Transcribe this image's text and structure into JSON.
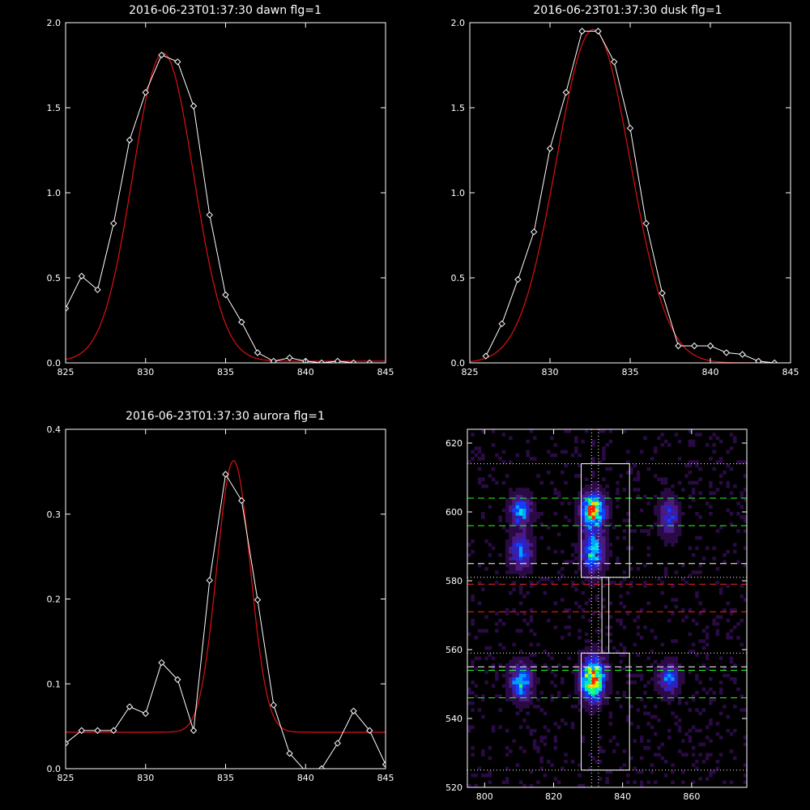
{
  "chart_data": [
    {
      "id": "dawn",
      "type": "line",
      "title": "2016-06-23T01:37:30 dawn flg=1",
      "xlabel": "",
      "ylabel": "",
      "xlim": [
        825,
        845
      ],
      "ylim": [
        0,
        2.0
      ],
      "xticks": [
        "825",
        "830",
        "835",
        "840",
        "845"
      ],
      "yticks": [
        "0.0",
        "0.5",
        "1.0",
        "1.5",
        "2.0"
      ],
      "series": [
        {
          "kind": "data",
          "color": "#ffffff",
          "marker": "diamond",
          "x": [
            825,
            826,
            827,
            828,
            829,
            830,
            831,
            832,
            833,
            834,
            835,
            836,
            837,
            838,
            839,
            840,
            841,
            842,
            843,
            844
          ],
          "y": [
            0.32,
            0.51,
            0.43,
            0.82,
            1.31,
            1.59,
            1.81,
            1.77,
            1.51,
            0.87,
            0.4,
            0.24,
            0.06,
            0.01,
            0.03,
            0.01,
            0.0,
            0.01,
            0.0,
            0.0
          ]
        },
        {
          "kind": "fit",
          "color": "#e01010",
          "gaussian": {
            "amp": 1.81,
            "center": 831.1,
            "sigma": 1.9,
            "offset": 0.01
          }
        }
      ]
    },
    {
      "id": "dusk",
      "type": "line",
      "title": "2016-06-23T01:37:30 dusk flg=1",
      "xlabel": "",
      "ylabel": "",
      "xlim": [
        825,
        845
      ],
      "ylim": [
        0,
        2.0
      ],
      "xticks": [
        "825",
        "830",
        "835",
        "840",
        "845"
      ],
      "yticks": [
        "0.0",
        "0.5",
        "1.0",
        "1.5",
        "2.0"
      ],
      "series": [
        {
          "kind": "data",
          "color": "#ffffff",
          "marker": "diamond",
          "x": [
            826,
            827,
            828,
            829,
            830,
            831,
            832,
            833,
            834,
            835,
            836,
            837,
            838,
            839,
            840,
            841,
            842,
            843,
            844
          ],
          "y": [
            0.04,
            0.23,
            0.49,
            0.77,
            1.26,
            1.59,
            1.95,
            1.95,
            1.77,
            1.38,
            0.82,
            0.41,
            0.1,
            0.1,
            0.1,
            0.06,
            0.05,
            0.01,
            0.0
          ]
        },
        {
          "kind": "fit",
          "color": "#e01010",
          "gaussian": {
            "amp": 1.96,
            "center": 832.7,
            "sigma": 2.3,
            "offset": 0.0
          }
        }
      ]
    },
    {
      "id": "aurora",
      "type": "line",
      "title": "2016-06-23T01:37:30 aurora flg=1",
      "xlabel": "",
      "ylabel": "",
      "xlim": [
        825,
        845
      ],
      "ylim": [
        0,
        0.4
      ],
      "xticks": [
        "825",
        "830",
        "835",
        "840",
        "845"
      ],
      "yticks": [
        "0.0",
        "0.1",
        "0.2",
        "0.3",
        "0.4"
      ],
      "series": [
        {
          "kind": "data",
          "color": "#ffffff",
          "marker": "diamond",
          "x": [
            825,
            826,
            827,
            828,
            829,
            830,
            831,
            832,
            833,
            834,
            835,
            836,
            837,
            838,
            839,
            840,
            841,
            842,
            843,
            844,
            845
          ],
          "y": [
            0.03,
            0.045,
            0.045,
            0.045,
            0.073,
            0.065,
            0.125,
            0.105,
            0.045,
            0.222,
            0.347,
            0.316,
            0.199,
            0.075,
            0.018,
            -0.003,
            0.0,
            0.03,
            0.068,
            0.045,
            0.005
          ]
        },
        {
          "kind": "fit",
          "color": "#e01010",
          "gaussian": {
            "amp": 0.32,
            "center": 835.5,
            "sigma": 1.05,
            "offset": 0.043
          }
        }
      ]
    },
    {
      "id": "image",
      "type": "heatmap",
      "title": "",
      "xlabel": "",
      "ylabel": "",
      "xlim": [
        795,
        876
      ],
      "ylim": [
        520,
        624
      ],
      "xticks": [
        "800",
        "820",
        "840",
        "860"
      ],
      "yticks": [
        "520",
        "540",
        "560",
        "580",
        "600",
        "620"
      ],
      "colormap": [
        "#000000",
        "#2a0a45",
        "#4a1a80",
        "#3020c0",
        "#1040ff",
        "#00a0ff",
        "#00e0e0",
        "#20ff60",
        "#c0ff00",
        "#ffd000",
        "#ff2000"
      ],
      "blobs": [
        {
          "x": 810,
          "y": 600,
          "sx": 2.0,
          "sy": 3.0,
          "amp": 0.55
        },
        {
          "x": 810,
          "y": 588,
          "sx": 2.2,
          "sy": 3.5,
          "amp": 0.45
        },
        {
          "x": 831,
          "y": 600,
          "sx": 2.2,
          "sy": 3.2,
          "amp": 1.0
        },
        {
          "x": 831,
          "y": 588,
          "sx": 2.2,
          "sy": 4.0,
          "amp": 0.6
        },
        {
          "x": 853,
          "y": 598,
          "sx": 2.0,
          "sy": 4.0,
          "amp": 0.35
        },
        {
          "x": 810,
          "y": 550,
          "sx": 2.2,
          "sy": 3.5,
          "amp": 0.6
        },
        {
          "x": 831,
          "y": 551,
          "sx": 2.3,
          "sy": 4.0,
          "amp": 1.0
        },
        {
          "x": 853,
          "y": 551,
          "sx": 2.0,
          "sy": 3.0,
          "amp": 0.45
        }
      ],
      "hlines": [
        {
          "y": 614,
          "color": "#ffffff",
          "style": "dotted"
        },
        {
          "y": 604,
          "color": "#20ff20",
          "style": "dashed"
        },
        {
          "y": 596,
          "color": "#20ff20",
          "style": "dashed"
        },
        {
          "y": 585,
          "color": "#ffffff",
          "style": "dashed"
        },
        {
          "y": 581,
          "color": "#ffffff",
          "style": "dotted"
        },
        {
          "y": 579,
          "color": "#ff2020",
          "style": "dashed"
        },
        {
          "y": 571,
          "color": "#ff2020",
          "style": "dashed"
        },
        {
          "y": 559,
          "color": "#ffffff",
          "style": "dotted"
        },
        {
          "y": 555,
          "color": "#ffffff",
          "style": "dashed"
        },
        {
          "y": 554,
          "color": "#20ff20",
          "style": "dashed"
        },
        {
          "y": 546,
          "color": "#20ff20",
          "style": "dashed"
        },
        {
          "y": 525,
          "color": "#ffffff",
          "style": "dotted"
        }
      ],
      "vlines": [
        {
          "x": 831,
          "color": "#ffffff",
          "style": "dotted"
        },
        {
          "x": 833,
          "color": "#ffffff",
          "style": "dotted"
        }
      ],
      "boxes": [
        {
          "x0": 828,
          "x1": 842,
          "y0": 581,
          "y1": 614,
          "color": "#ffffff"
        },
        {
          "x0": 828,
          "x1": 842,
          "y0": 525,
          "y1": 559,
          "color": "#ffffff"
        },
        {
          "x0": 834,
          "x1": 836,
          "y0": 559,
          "y1": 581,
          "color": "#ffffff"
        }
      ]
    }
  ]
}
